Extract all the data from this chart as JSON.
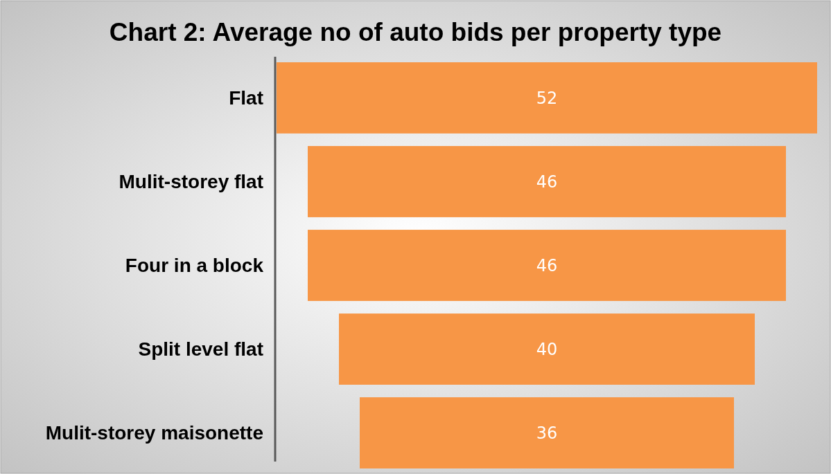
{
  "chart_data": {
    "type": "other",
    "title": "Chart 2: Average no of auto bids per property type",
    "categories": [
      "Flat",
      "Mulit-storey flat",
      "Four in a block",
      "Split level flat",
      "Mulit-storey maisonette"
    ],
    "values": [
      52,
      46,
      46,
      40,
      36
    ],
    "color": "#f79646",
    "data_labels": true
  }
}
